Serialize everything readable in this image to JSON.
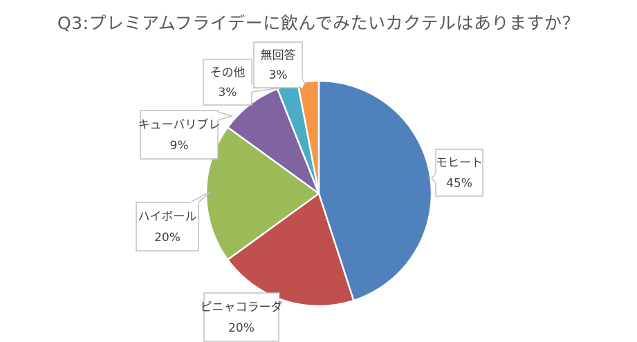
{
  "chart_data": {
    "type": "pie",
    "title": "Q3:プレミアムフライデーに飲んでみたいカクテルはありますか？",
    "slices": [
      {
        "label": "モヒート",
        "value": 45,
        "value_label": "45%",
        "color": "#4f81bd"
      },
      {
        "label": "ピニャコラーダ",
        "value": 20,
        "value_label": "20%",
        "color": "#c0504d"
      },
      {
        "label": "ハイボール",
        "value": 20,
        "value_label": "20%",
        "color": "#9bbb59"
      },
      {
        "label": "キューバリブレ",
        "value": 9,
        "value_label": "9%",
        "color": "#8064a2"
      },
      {
        "label": "その他",
        "value": 3,
        "value_label": "3%",
        "color": "#4bacc6"
      },
      {
        "label": "無回答",
        "value": 3,
        "value_label": "3%",
        "color": "#f79646"
      }
    ],
    "legend": "none",
    "data_labels": "callout"
  }
}
